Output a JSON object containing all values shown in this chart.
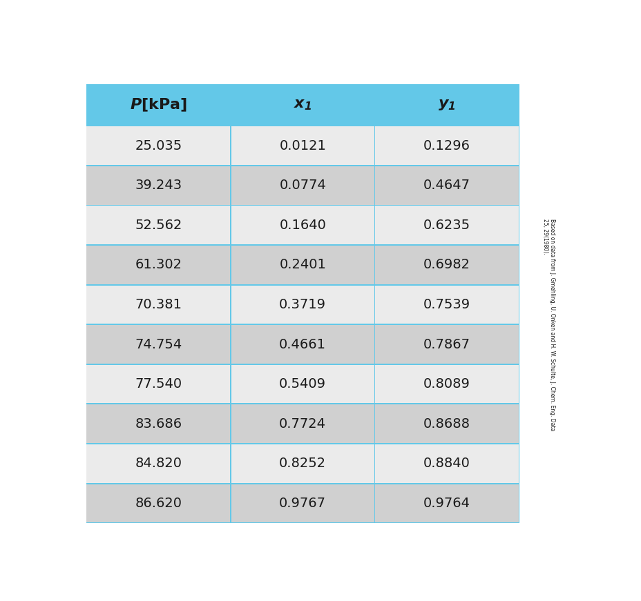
{
  "headers": [
    "P[kPa]",
    "x_1",
    "y_1"
  ],
  "rows": [
    [
      "25.035",
      "0.0121",
      "0.1296"
    ],
    [
      "39.243",
      "0.0774",
      "0.4647"
    ],
    [
      "52.562",
      "0.1640",
      "0.6235"
    ],
    [
      "61.302",
      "0.2401",
      "0.6982"
    ],
    [
      "70.381",
      "0.3719",
      "0.7539"
    ],
    [
      "74.754",
      "0.4661",
      "0.7867"
    ],
    [
      "77.540",
      "0.5409",
      "0.8089"
    ],
    [
      "83.686",
      "0.7724",
      "0.8688"
    ],
    [
      "84.820",
      "0.8252",
      "0.8840"
    ],
    [
      "86.620",
      "0.9767",
      "0.9764"
    ]
  ],
  "header_bg": "#63C8E8",
  "outer_bg": "#63C8E8",
  "row_bg_light": "#EBEBEB",
  "row_bg_dark": "#D0D0D0",
  "header_text_color": "#1A1A1A",
  "data_text_color": "#1A1A1A",
  "side_note_line1": "Based on data from J. Gmehling, U. Onken and H. W. Schulte, J. Chem. Eng. Data",
  "side_note_line2": "25, 29(1980).",
  "fig_width": 9.29,
  "fig_height": 8.71,
  "dpi": 100
}
